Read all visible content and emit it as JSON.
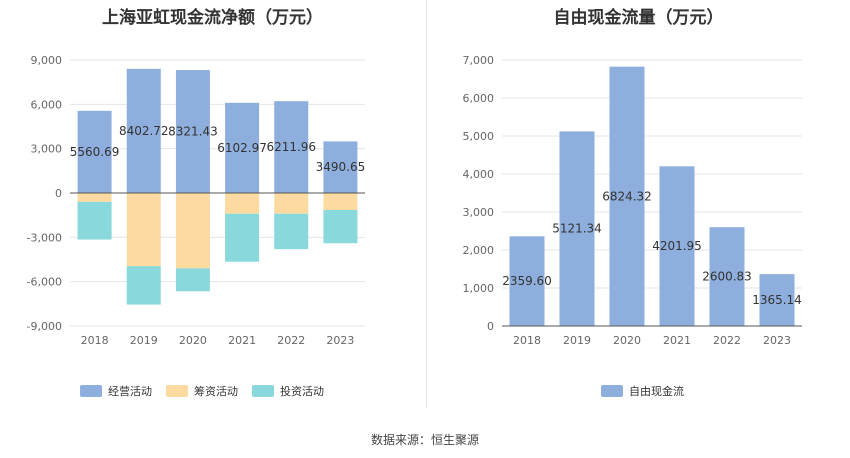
{
  "colors": {
    "operating": "#8eaedd",
    "financing": "#fddaa0",
    "investing": "#89d8dc",
    "fcf": "#8eaedd"
  },
  "source_text": "数据来源：恒生聚源",
  "chart_data": [
    {
      "type": "bar",
      "stacked": true,
      "title": "上海亚虹现金流净额（万元）",
      "categories": [
        "2018",
        "2019",
        "2020",
        "2021",
        "2022",
        "2023"
      ],
      "series": [
        {
          "name": "经营活动",
          "values": [
            5560.69,
            8402.72,
            8321.43,
            6102.97,
            6211.96,
            3490.65
          ]
        },
        {
          "name": "筹资活动",
          "values": [
            -600,
            -4950,
            -5100,
            -1400,
            -1400,
            -1150
          ]
        },
        {
          "name": "投资活动",
          "values": [
            -2550,
            -2600,
            -1550,
            -3250,
            -2400,
            -2250
          ]
        }
      ],
      "data_labels": [
        "5560.69",
        "8402.72",
        "8321.43",
        "6102.97",
        "6211.96",
        "3490.65"
      ],
      "yticks": [
        "9,000",
        "6,000",
        "3,000",
        "0",
        "-3,000",
        "-6,000",
        "-9,000"
      ],
      "ylim": [
        -9000,
        9000
      ],
      "grid": true,
      "legend": "bottom"
    },
    {
      "type": "bar",
      "title": "自由现金流量（万元）",
      "categories": [
        "2018",
        "2019",
        "2020",
        "2021",
        "2022",
        "2023"
      ],
      "series": [
        {
          "name": "自由现金流",
          "values": [
            2359.6,
            5121.34,
            6824.32,
            4201.95,
            2600.83,
            1365.14
          ]
        }
      ],
      "data_labels": [
        "2359.60",
        "5121.34",
        "6824.32",
        "4201.95",
        "2600.83",
        "1365.14"
      ],
      "yticks": [
        "7,000",
        "6,000",
        "5,000",
        "4,000",
        "3,000",
        "2,000",
        "1,000",
        "0"
      ],
      "ylim": [
        0,
        7000
      ],
      "grid": true,
      "legend": "bottom"
    }
  ]
}
